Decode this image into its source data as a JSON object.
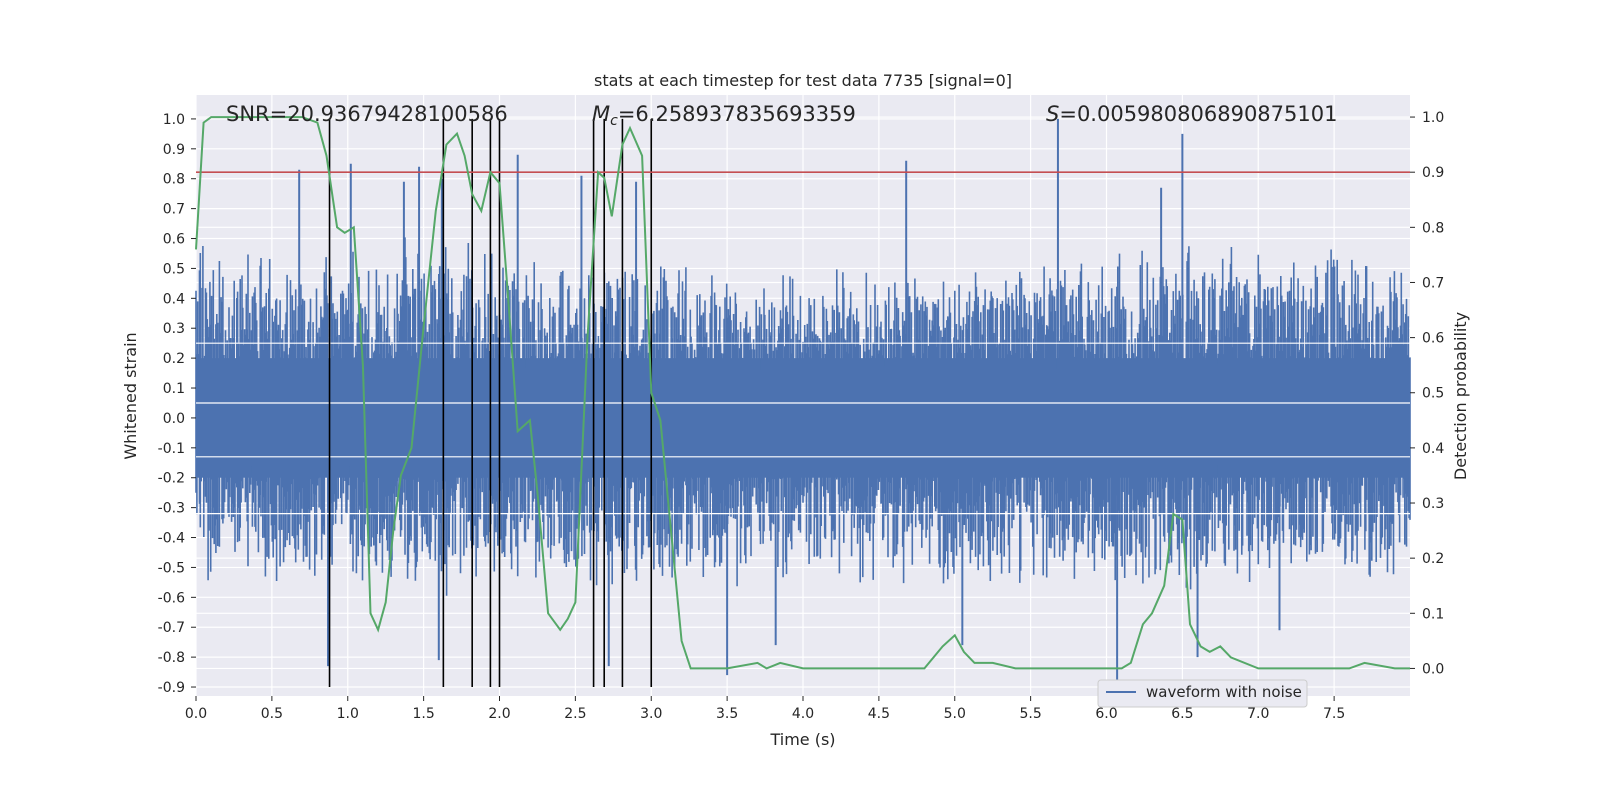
{
  "chart_data": {
    "type": "line",
    "title": "stats at each timestep for test data 7735 [signal=0]",
    "xlabel": "Time (s)",
    "ylabel": "Whitened strain",
    "ylabel_right": "Detection probability",
    "xlim": [
      0,
      8
    ],
    "ylim": [
      -0.93,
      1.08
    ],
    "ylim_right": [
      -0.05,
      1.04
    ],
    "x_ticks": [
      "0.0",
      "0.5",
      "1.0",
      "1.5",
      "2.0",
      "2.5",
      "3.0",
      "3.5",
      "4.0",
      "4.5",
      "5.0",
      "5.5",
      "6.0",
      "6.5",
      "7.0",
      "7.5"
    ],
    "y_ticks": [
      "1.0",
      "0.9",
      "0.8",
      "0.7",
      "0.6",
      "0.5",
      "0.4",
      "0.3",
      "0.2",
      "0.1",
      "0.0",
      "-0.1",
      "-0.2",
      "-0.3",
      "-0.4",
      "-0.5",
      "-0.6",
      "-0.7",
      "-0.8",
      "-0.9"
    ],
    "y_ticks_right": [
      "1.0",
      "0.9",
      "0.8",
      "0.7",
      "0.6",
      "0.5",
      "0.4",
      "0.3",
      "0.2",
      "0.1",
      "0.0"
    ],
    "annotations": {
      "snr": "SNR=20.93679428100586",
      "mc_symbol": "M",
      "mc_sub": "c",
      "mc_value": "=6.258937835693359",
      "s_symbol": "S",
      "s_value": "=0.005980806890875101"
    },
    "threshold": 0.9,
    "vlines": [
      0.88,
      1.63,
      1.82,
      1.94,
      2.0,
      2.62,
      2.69,
      2.81,
      3.0
    ],
    "legend": {
      "label": "waveform with noise",
      "position": "lower-right"
    },
    "series": [
      {
        "name": "waveform with noise",
        "color": "#4c72b0",
        "envelope": {
          "x": [
            0,
            0.5,
            1.0,
            1.5,
            1.8,
            2.1,
            2.5,
            3.0,
            3.3,
            4.0,
            4.5,
            5.0,
            5.5,
            6.0,
            6.5,
            7.0,
            7.5,
            8.0
          ],
          "upper": [
            0.55,
            0.5,
            0.5,
            0.55,
            0.55,
            0.5,
            0.48,
            0.5,
            0.45,
            0.45,
            0.45,
            0.45,
            0.48,
            0.5,
            0.55,
            0.5,
            0.52,
            0.5
          ],
          "lower": [
            -0.5,
            -0.5,
            -0.52,
            -0.55,
            -0.55,
            -0.5,
            -0.52,
            -0.5,
            -0.5,
            -0.5,
            -0.5,
            -0.5,
            -0.52,
            -0.5,
            -0.55,
            -0.52,
            -0.5,
            -0.5
          ]
        },
        "peaks": [
          {
            "x": 0.68,
            "y": 0.83
          },
          {
            "x": 1.02,
            "y": 0.85
          },
          {
            "x": 1.37,
            "y": 0.79
          },
          {
            "x": 1.47,
            "y": 0.84
          },
          {
            "x": 1.62,
            "y": 0.8
          },
          {
            "x": 2.12,
            "y": 0.88
          },
          {
            "x": 2.54,
            "y": 0.81
          },
          {
            "x": 2.9,
            "y": 0.79
          },
          {
            "x": 4.68,
            "y": 0.86
          },
          {
            "x": 5.68,
            "y": 1.0
          },
          {
            "x": 6.5,
            "y": 0.95
          },
          {
            "x": 6.36,
            "y": 0.77
          },
          {
            "x": 0.87,
            "y": -0.83
          },
          {
            "x": 1.6,
            "y": -0.81
          },
          {
            "x": 2.72,
            "y": -0.83
          },
          {
            "x": 3.5,
            "y": -0.86
          },
          {
            "x": 3.82,
            "y": -0.76
          },
          {
            "x": 5.05,
            "y": -0.76
          },
          {
            "x": 6.07,
            "y": -0.88
          },
          {
            "x": 6.6,
            "y": -0.8
          },
          {
            "x": 7.14,
            "y": -0.71
          }
        ]
      },
      {
        "name": "detection probability",
        "color": "#55a868",
        "axis": "right",
        "x": [
          0,
          0.05,
          0.1,
          0.2,
          0.3,
          0.5,
          0.7,
          0.8,
          0.86,
          0.93,
          0.98,
          1.04,
          1.1,
          1.15,
          1.2,
          1.25,
          1.3,
          1.35,
          1.42,
          1.5,
          1.58,
          1.65,
          1.72,
          1.77,
          1.82,
          1.88,
          1.94,
          2.0,
          2.06,
          2.12,
          2.2,
          2.25,
          2.32,
          2.4,
          2.45,
          2.5,
          2.58,
          2.65,
          2.69,
          2.74,
          2.81,
          2.86,
          2.94,
          3.0,
          3.06,
          3.13,
          3.2,
          3.26,
          3.33,
          3.5,
          3.7,
          3.76,
          3.85,
          4.0,
          4.1,
          4.3,
          4.5,
          4.8,
          4.92,
          5.0,
          5.06,
          5.13,
          5.25,
          5.4,
          5.6,
          6.0,
          6.1,
          6.16,
          6.24,
          6.3,
          6.38,
          6.44,
          6.5,
          6.55,
          6.62,
          6.68,
          6.75,
          6.82,
          7.0,
          7.4,
          7.6,
          7.7,
          7.9,
          8.0
        ],
        "y": [
          0.76,
          0.99,
          1.0,
          1.0,
          1.0,
          1.0,
          1.0,
          0.99,
          0.93,
          0.8,
          0.79,
          0.8,
          0.55,
          0.1,
          0.07,
          0.12,
          0.25,
          0.35,
          0.4,
          0.62,
          0.83,
          0.95,
          0.97,
          0.93,
          0.86,
          0.83,
          0.9,
          0.88,
          0.66,
          0.43,
          0.45,
          0.32,
          0.1,
          0.07,
          0.09,
          0.12,
          0.6,
          0.9,
          0.89,
          0.82,
          0.95,
          0.98,
          0.93,
          0.5,
          0.45,
          0.25,
          0.05,
          0.0,
          0.0,
          0.0,
          0.01,
          0.0,
          0.01,
          0.0,
          0.0,
          0.0,
          0.0,
          0.0,
          0.04,
          0.06,
          0.03,
          0.01,
          0.01,
          0.0,
          0.0,
          0.0,
          0.0,
          0.01,
          0.08,
          0.1,
          0.15,
          0.28,
          0.27,
          0.08,
          0.04,
          0.03,
          0.04,
          0.02,
          0.0,
          0.0,
          0.0,
          0.01,
          0.0,
          0.0
        ]
      }
    ]
  }
}
